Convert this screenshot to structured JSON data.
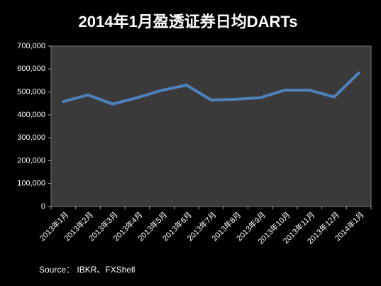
{
  "chart_data": {
    "type": "line",
    "title": "2014年1月盈透证券日均DARTs",
    "categories": [
      "2013年1月",
      "2013年2月",
      "2013年3月",
      "2013年4月",
      "2013年5月",
      "2013年6月",
      "2013年7月",
      "2013年8月",
      "2013年9月",
      "2013年10月",
      "2013年11月",
      "2013年12月",
      "2014年1月"
    ],
    "series": [
      {
        "color": "#4f81bd",
        "values": [
          458000,
          487000,
          447000,
          475000,
          507000,
          530000,
          465000,
          468000,
          475000,
          508000,
          508000,
          478000,
          583000
        ]
      }
    ],
    "ylim": [
      0,
      700000
    ],
    "yticks": [
      0,
      {
        "value": 100000,
        "label": "100,000"
      },
      {
        "value": 200000,
        "label": "200,000"
      },
      {
        "value": 300000,
        "label": "300,000"
      },
      {
        "value": 400000,
        "label": "400,000"
      },
      {
        "value": 500000,
        "label": "500,000"
      },
      {
        "value": 600000,
        "label": "600,000"
      },
      {
        "value": 700000,
        "label": "700,000"
      }
    ],
    "grid": false,
    "source": "Source： IBKR、FXShell"
  }
}
